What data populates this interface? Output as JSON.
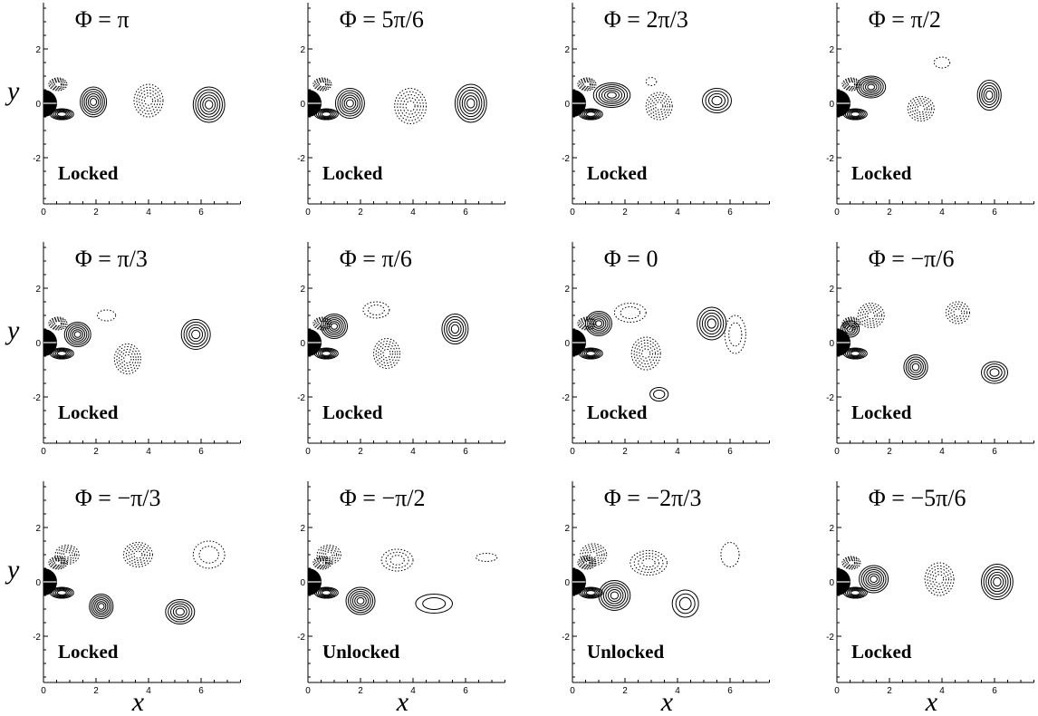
{
  "figure": {
    "axes": {
      "xlabel": "x",
      "ylabel": "y"
    },
    "x_ticks": [
      "0",
      "2",
      "4",
      "6"
    ],
    "y_ticks": [
      "2",
      "0",
      "-2"
    ],
    "panels": [
      {
        "phase": "Φ = π",
        "state": "Locked"
      },
      {
        "phase": "Φ = 5π/6",
        "state": "Locked"
      },
      {
        "phase": "Φ = 2π/3",
        "state": "Locked"
      },
      {
        "phase": "Φ = π/2",
        "state": "Locked"
      },
      {
        "phase": "Φ = π/3",
        "state": "Locked"
      },
      {
        "phase": "Φ = π/6",
        "state": "Locked"
      },
      {
        "phase": "Φ = 0",
        "state": "Locked"
      },
      {
        "phase": "Φ = −π/6",
        "state": "Locked"
      },
      {
        "phase": "Φ = −π/3",
        "state": "Locked"
      },
      {
        "phase": "Φ = −π/2",
        "state": "Unlocked"
      },
      {
        "phase": "Φ = −2π/3",
        "state": "Unlocked"
      },
      {
        "phase": "Φ = −5π/6",
        "state": "Locked"
      }
    ]
  }
}
